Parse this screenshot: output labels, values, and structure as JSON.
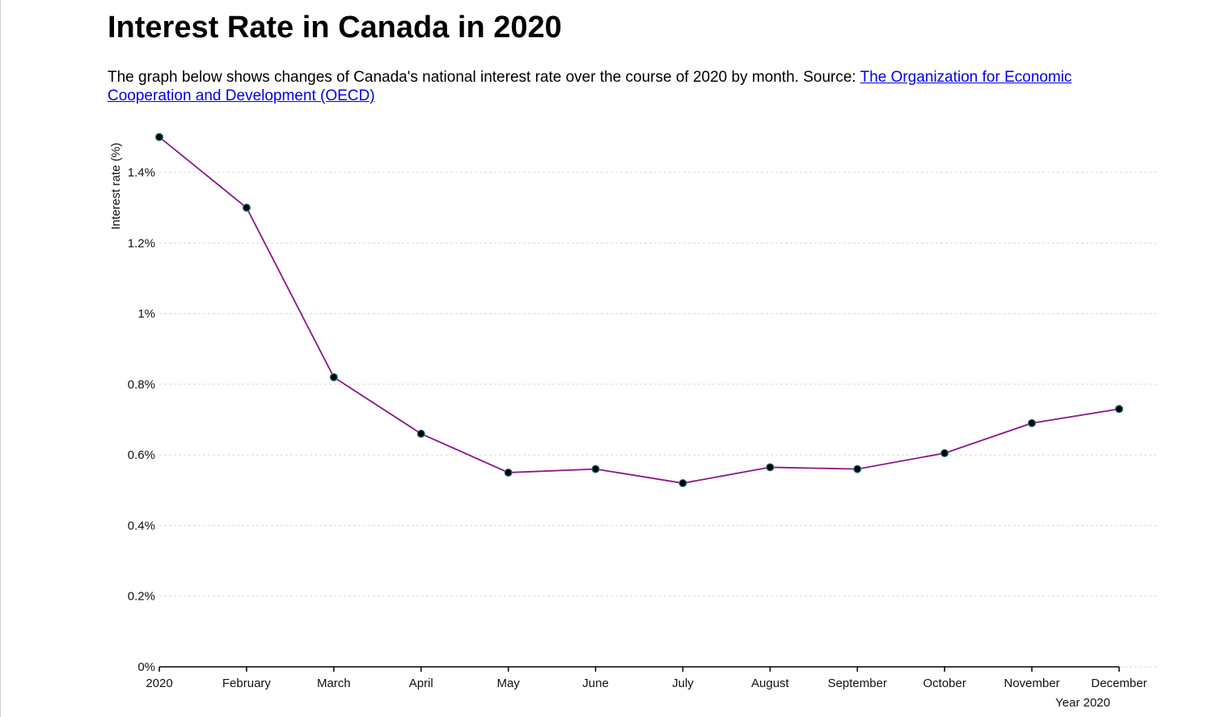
{
  "page": {
    "title": "Interest Rate in Canada in 2020",
    "description": "The graph below shows changes of Canada's national interest rate over the course of 2020 by month. Source: ",
    "source_link_text": "The Organization for Economic Cooperation and Development (OECD)"
  },
  "colors": {
    "line": "#8b168b",
    "point_fill": "#000000",
    "point_stroke": "#2a8a8a",
    "grid": "#d8d8d8",
    "axis": "#000000"
  },
  "chart_data": {
    "type": "line",
    "title": "",
    "xlabel": "Year 2020",
    "ylabel": "Interest rate (%)",
    "categories": [
      "2020",
      "February",
      "March",
      "April",
      "May",
      "June",
      "July",
      "August",
      "September",
      "October",
      "November",
      "December"
    ],
    "values": [
      1.5,
      1.3,
      0.82,
      0.66,
      0.55,
      0.56,
      0.52,
      0.565,
      0.56,
      0.605,
      0.69,
      0.73
    ],
    "ylim": [
      0,
      1.4
    ],
    "yticks": [
      0,
      0.2,
      0.4,
      0.6,
      0.8,
      1,
      1.2,
      1.4
    ],
    "ytick_labels": [
      "0%",
      "0.2%",
      "0.4%",
      "0.6%",
      "0.8%",
      "1%",
      "1.2%",
      "1.4%"
    ],
    "grid": true,
    "legend": "none"
  }
}
